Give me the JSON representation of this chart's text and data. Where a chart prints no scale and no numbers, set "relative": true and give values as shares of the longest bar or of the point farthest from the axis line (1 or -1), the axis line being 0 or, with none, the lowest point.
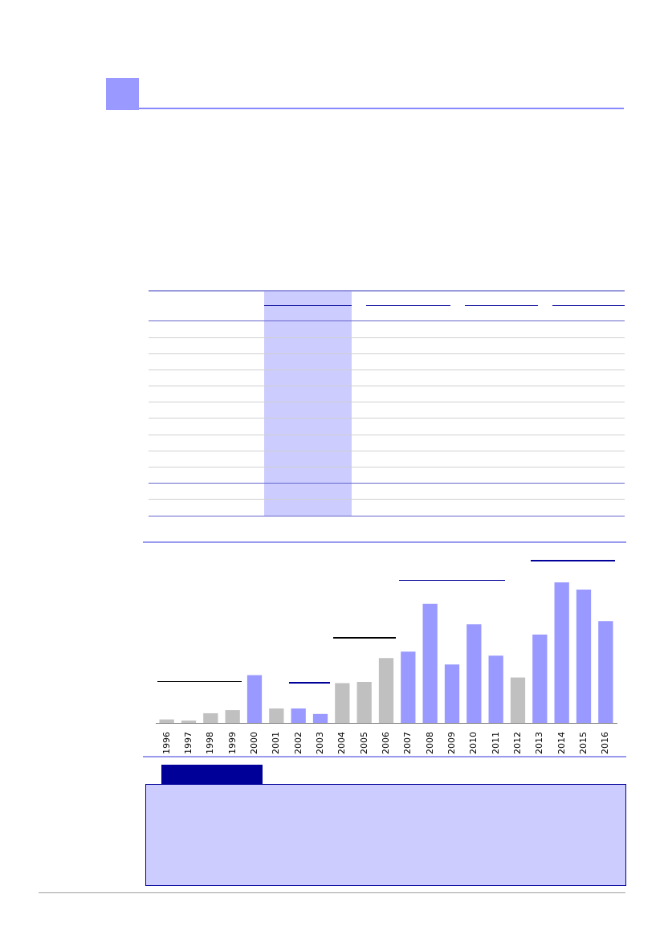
{
  "chart_data": {
    "type": "bar",
    "relative": true,
    "categories": [
      "1996",
      "1997",
      "1998",
      "1999",
      "2000",
      "2001",
      "2002",
      "2003",
      "2004",
      "2005",
      "2006",
      "2007",
      "2008",
      "2009",
      "2010",
      "2011",
      "2012",
      "2013",
      "2014",
      "2015",
      "2016"
    ],
    "values": [
      0.025,
      0.017,
      0.069,
      0.091,
      0.34,
      0.103,
      0.103,
      0.064,
      0.283,
      0.291,
      0.461,
      0.507,
      0.847,
      0.416,
      0.702,
      0.478,
      0.323,
      0.628,
      1,
      0.948,
      0.724
    ],
    "colors": [
      "#c0c0c0",
      "#c0c0c0",
      "#c0c0c0",
      "#c0c0c0",
      "#9999ff",
      "#c0c0c0",
      "#9999ff",
      "#9999ff",
      "#c0c0c0",
      "#c0c0c0",
      "#c0c0c0",
      "#9999ff",
      "#9999ff",
      "#9999ff",
      "#9999ff",
      "#9999ff",
      "#c0c0c0",
      "#9999ff",
      "#9999ff",
      "#9999ff",
      "#9999ff"
    ]
  }
}
